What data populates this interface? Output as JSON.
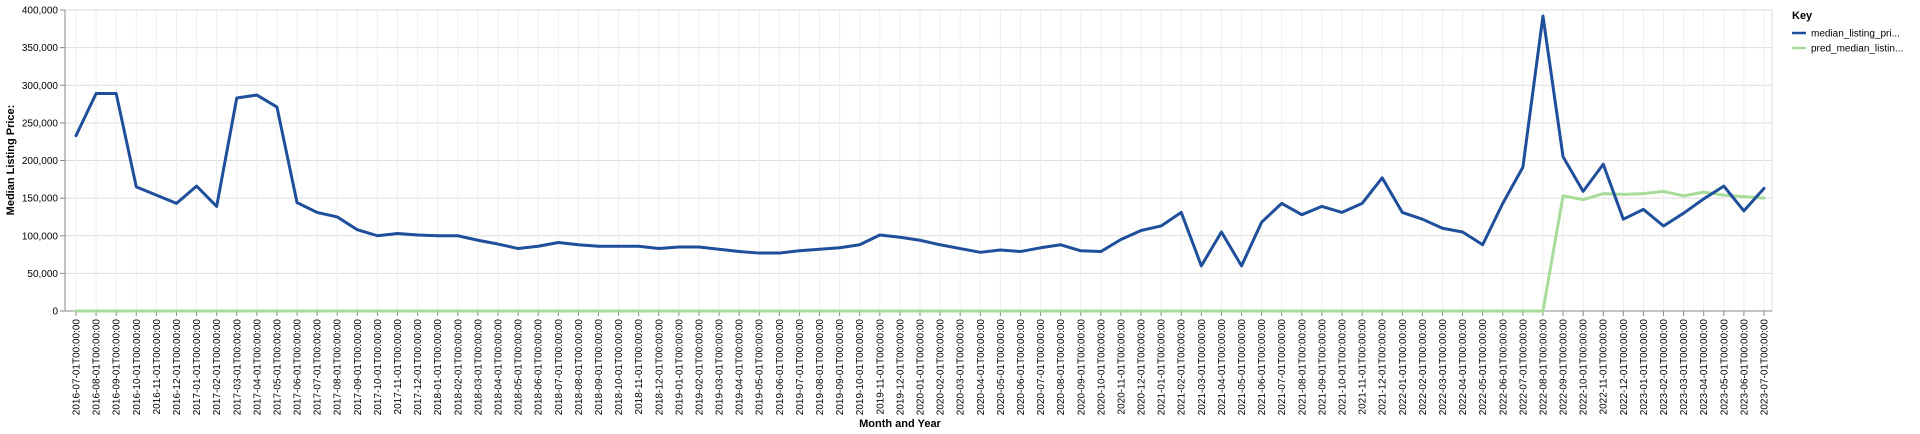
{
  "chart_data": {
    "type": "line",
    "xlabel": "Month and Year",
    "ylabel": "Median Listing Price:",
    "ylim": [
      0,
      400000
    ],
    "y_ticks": [
      0,
      50000,
      100000,
      150000,
      200000,
      250000,
      300000,
      350000,
      400000
    ],
    "y_tick_labels": [
      "0",
      "50,000",
      "100,000",
      "150,000",
      "200,000",
      "250,000",
      "300,000",
      "350,000",
      "400,000"
    ],
    "grid": true,
    "legend": {
      "title": "Key",
      "position": "top-right"
    },
    "x": [
      "2016-07-01T00:00:00",
      "2016-08-01T00:00:00",
      "2016-09-01T00:00:00",
      "2016-10-01T00:00:00",
      "2016-11-01T00:00:00",
      "2016-12-01T00:00:00",
      "2017-01-01T00:00:00",
      "2017-02-01T00:00:00",
      "2017-03-01T00:00:00",
      "2017-04-01T00:00:00",
      "2017-05-01T00:00:00",
      "2017-06-01T00:00:00",
      "2017-07-01T00:00:00",
      "2017-08-01T00:00:00",
      "2017-09-01T00:00:00",
      "2017-10-01T00:00:00",
      "2017-11-01T00:00:00",
      "2017-12-01T00:00:00",
      "2018-01-01T00:00:00",
      "2018-02-01T00:00:00",
      "2018-03-01T00:00:00",
      "2018-04-01T00:00:00",
      "2018-05-01T00:00:00",
      "2018-06-01T00:00:00",
      "2018-07-01T00:00:00",
      "2018-08-01T00:00:00",
      "2018-09-01T00:00:00",
      "2018-10-01T00:00:00",
      "2018-11-01T00:00:00",
      "2018-12-01T00:00:00",
      "2019-01-01T00:00:00",
      "2019-02-01T00:00:00",
      "2019-03-01T00:00:00",
      "2019-04-01T00:00:00",
      "2019-05-01T00:00:00",
      "2019-06-01T00:00:00",
      "2019-07-01T00:00:00",
      "2019-08-01T00:00:00",
      "2019-09-01T00:00:00",
      "2019-10-01T00:00:00",
      "2019-11-01T00:00:00",
      "2019-12-01T00:00:00",
      "2020-01-01T00:00:00",
      "2020-02-01T00:00:00",
      "2020-03-01T00:00:00",
      "2020-04-01T00:00:00",
      "2020-05-01T00:00:00",
      "2020-06-01T00:00:00",
      "2020-07-01T00:00:00",
      "2020-08-01T00:00:00",
      "2020-09-01T00:00:00",
      "2020-10-01T00:00:00",
      "2020-11-01T00:00:00",
      "2020-12-01T00:00:00",
      "2021-01-01T00:00:00",
      "2021-02-01T00:00:00",
      "2021-03-01T00:00:00",
      "2021-04-01T00:00:00",
      "2021-05-01T00:00:00",
      "2021-06-01T00:00:00",
      "2021-07-01T00:00:00",
      "2021-08-01T00:00:00",
      "2021-09-01T00:00:00",
      "2021-10-01T00:00:00",
      "2021-11-01T00:00:00",
      "2021-12-01T00:00:00",
      "2022-01-01T00:00:00",
      "2022-02-01T00:00:00",
      "2022-03-01T00:00:00",
      "2022-04-01T00:00:00",
      "2022-05-01T00:00:00",
      "2022-06-01T00:00:00",
      "2022-07-01T00:00:00",
      "2022-08-01T00:00:00",
      "2022-09-01T00:00:00",
      "2022-10-01T00:00:00",
      "2022-11-01T00:00:00",
      "2022-12-01T00:00:00",
      "2023-01-01T00:00:00",
      "2023-02-01T00:00:00",
      "2023-03-01T00:00:00",
      "2023-04-01T00:00:00",
      "2023-05-01T00:00:00",
      "2023-06-01T00:00:00",
      "2023-07-01T00:00:00"
    ],
    "series": [
      {
        "name": "median_listing_pri...",
        "color": "#1f4e9a",
        "values": [
          233000,
          289000,
          289000,
          165000,
          154000,
          143000,
          166000,
          139000,
          283000,
          287000,
          271000,
          144000,
          131000,
          125000,
          108000,
          100000,
          103000,
          101000,
          100000,
          100000,
          94000,
          89000,
          83000,
          86000,
          91000,
          88000,
          86000,
          86000,
          86000,
          83000,
          85000,
          85000,
          82000,
          79000,
          77000,
          77000,
          80000,
          82000,
          84000,
          88000,
          101000,
          98000,
          94000,
          88000,
          83000,
          78000,
          81000,
          79000,
          84000,
          88000,
          80000,
          79000,
          95000,
          107000,
          113000,
          131000,
          60000,
          105000,
          60000,
          118000,
          143000,
          128000,
          139000,
          131000,
          143000,
          177000,
          131000,
          122000,
          110000,
          105000,
          88000,
          143000,
          191000,
          392000,
          205000,
          159000,
          195000,
          122000,
          135000,
          113000,
          130000,
          149000,
          166000,
          133000,
          163000
        ]
      },
      {
        "name": "pred_median_listin...",
        "color": "#a8dc9a",
        "values": [
          0,
          0,
          0,
          0,
          0,
          0,
          0,
          0,
          0,
          0,
          0,
          0,
          0,
          0,
          0,
          0,
          0,
          0,
          0,
          0,
          0,
          0,
          0,
          0,
          0,
          0,
          0,
          0,
          0,
          0,
          0,
          0,
          0,
          0,
          0,
          0,
          0,
          0,
          0,
          0,
          0,
          0,
          0,
          0,
          0,
          0,
          0,
          0,
          0,
          0,
          0,
          0,
          0,
          0,
          0,
          0,
          0,
          0,
          0,
          0,
          0,
          0,
          0,
          0,
          0,
          0,
          0,
          0,
          0,
          0,
          0,
          0,
          0,
          0,
          153000,
          148000,
          156000,
          155000,
          156000,
          159000,
          153000,
          158000,
          154000,
          152000,
          150000
        ]
      }
    ]
  }
}
